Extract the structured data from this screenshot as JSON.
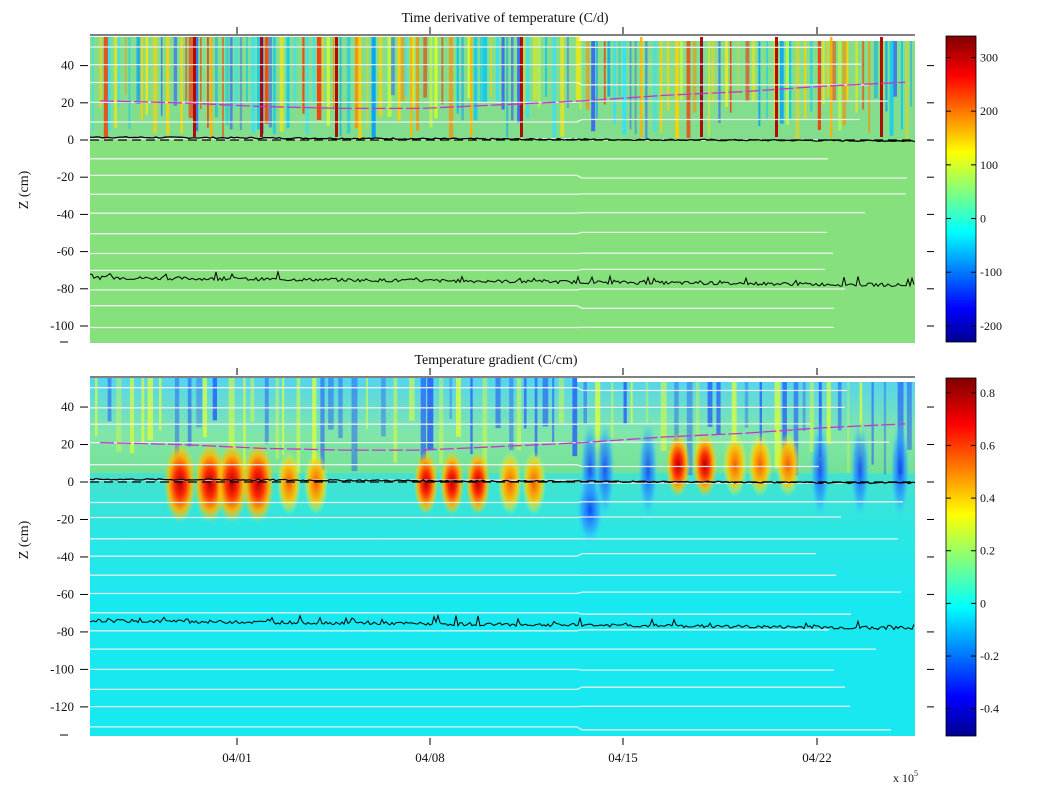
{
  "chart_data": [
    {
      "type": "heatmap",
      "title": "Time derivative of temperature  (C/d)",
      "ylabel": "Z (cm)",
      "ylim": [
        -107,
        55
      ],
      "y_ticks": [
        40,
        20,
        0,
        -20,
        -40,
        -60,
        -80,
        -100
      ],
      "y_tick_labels": [
        "40",
        "20",
        "0",
        "-20",
        "-40",
        "-60",
        "-80",
        "-100"
      ],
      "x_ticks": [
        "04/01",
        "04/08",
        "04/15",
        "04/22"
      ],
      "x_tick_labels_visible": false,
      "colorbar": {
        "min": -230,
        "max": 340,
        "ticks": [
          300,
          200,
          100,
          0,
          -100,
          -200
        ],
        "tick_labels": [
          "300",
          "200",
          "100",
          "0",
          "-100",
          "-200"
        ],
        "colormap": "jet"
      },
      "grid": false,
      "snow_surface_depth": [
        21,
        20,
        18,
        17,
        17,
        19,
        21,
        24,
        26,
        29,
        31
      ],
      "ground_level": 0,
      "lower_boundary_depth": -76
    },
    {
      "type": "heatmap",
      "title": "Temperature gradient (C/cm)",
      "ylabel": "Z (cm)",
      "ylim": [
        -135,
        55
      ],
      "y_ticks": [
        40,
        20,
        0,
        -20,
        -40,
        -60,
        -80,
        -100,
        -120
      ],
      "y_tick_labels": [
        "40",
        "20",
        "0",
        "-20",
        "-40",
        "-60",
        "-80",
        "-100",
        "-120"
      ],
      "x_ticks": [
        "04/01",
        "04/08",
        "04/15",
        "04/22"
      ],
      "x_tick_labels": [
        "04/01",
        "04/08",
        "04/15",
        "04/22"
      ],
      "x_multiplier": "x 10",
      "x_multiplier_exp": "5",
      "colorbar": {
        "min": -0.5,
        "max": 0.86,
        "ticks": [
          0.8,
          0.6,
          0.4,
          0.2,
          0,
          -0.2,
          -0.4
        ],
        "tick_labels": [
          "0.8",
          "0.6",
          "0.4",
          "0.2",
          "0",
          "-0.2",
          "-0.4"
        ],
        "colormap": "jet"
      },
      "grid": false,
      "snow_surface_depth": [
        21,
        20,
        18,
        17,
        17,
        19,
        21,
        24,
        26,
        29,
        31
      ],
      "ground_level": 0,
      "lower_boundary_depth": -76
    }
  ]
}
